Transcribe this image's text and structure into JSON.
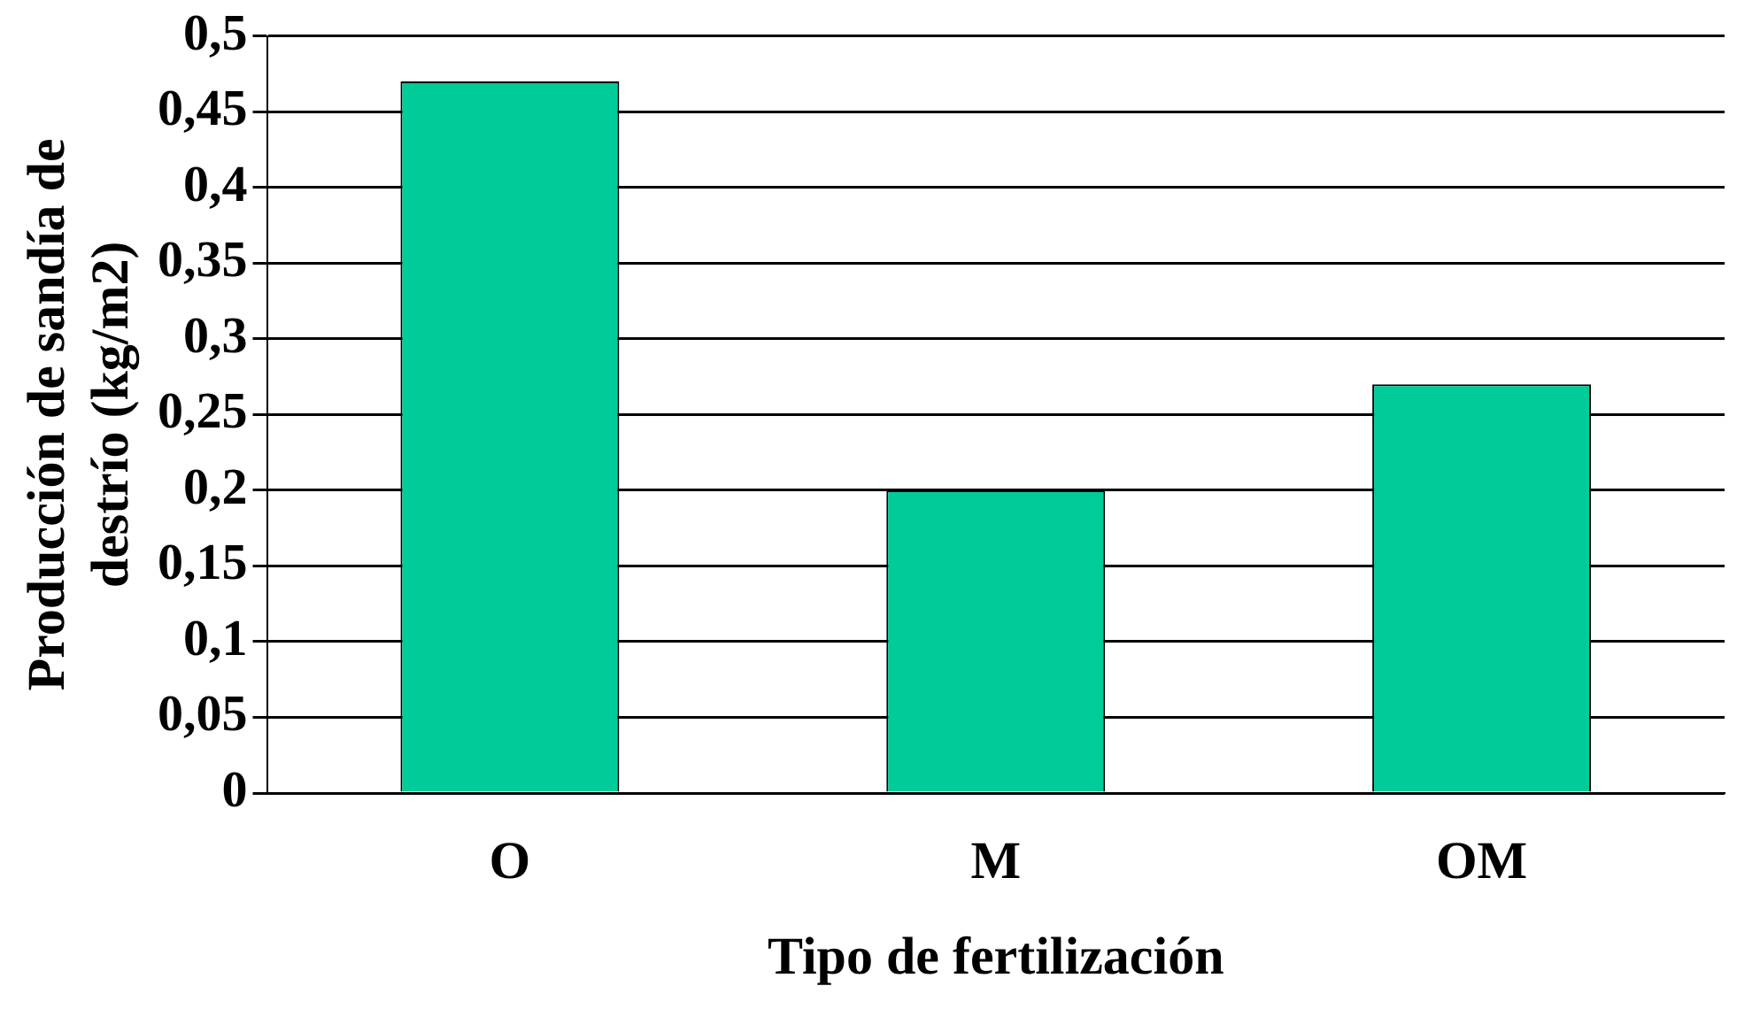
{
  "chart_data": {
    "type": "bar",
    "xlabel": "Tipo de fertilización",
    "ylabel": "Producción de sandía de destrío (kg/m2)",
    "categories": [
      "O",
      "M",
      "OM"
    ],
    "series": [
      {
        "color": "#00cc99",
        "values": [
          0.47,
          0.2,
          0.27
        ]
      }
    ],
    "ylim": [
      0,
      0.5
    ],
    "yticks": [
      0,
      {
        "value": 0.05,
        "label": "0,05"
      },
      {
        "value": 0.1,
        "label": "0,1"
      },
      {
        "value": 0.15,
        "label": "0,15"
      },
      {
        "value": 0.2,
        "label": "0,2"
      },
      {
        "value": 0.25,
        "label": "0,25"
      },
      {
        "value": 0.3,
        "label": "0,3"
      },
      {
        "value": 0.35,
        "label": "0,35"
      },
      {
        "value": 0.4,
        "label": "0,4"
      },
      {
        "value": 0.45,
        "label": "0,45"
      },
      {
        "value": 0.5,
        "label": "0,5"
      }
    ],
    "grid": "y",
    "legend": false
  }
}
